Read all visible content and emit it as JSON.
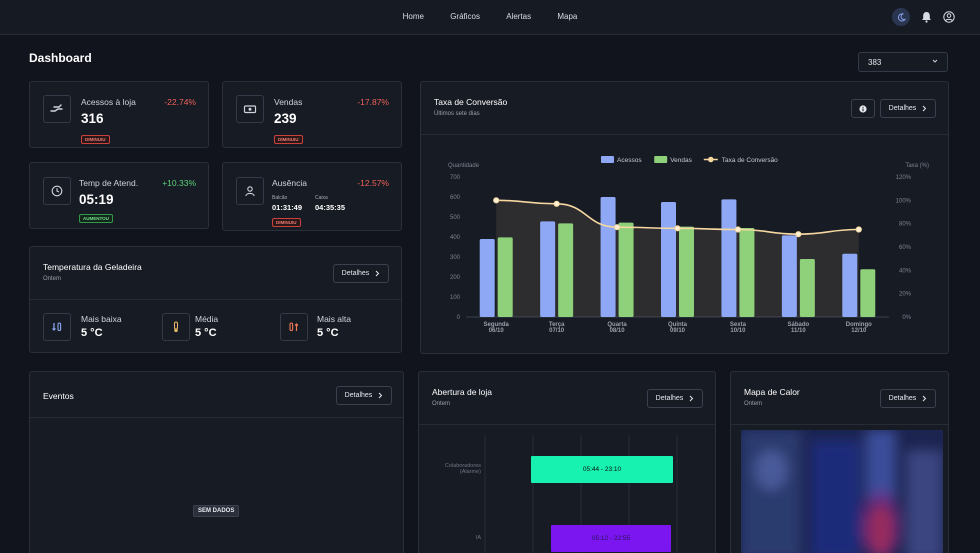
{
  "nav": {
    "items": [
      "Home",
      "Gráficos",
      "Alertas",
      "Mapa"
    ]
  },
  "page": {
    "title": "Dashboard",
    "select_value": "383"
  },
  "kpis": [
    {
      "label": "Acessos à loja",
      "value": "316",
      "pct": "-22.74%",
      "badge": "DIMINUIU",
      "icon": "hand-icon"
    },
    {
      "label": "Vendas",
      "value": "239",
      "pct": "-17.87%",
      "badge": "DIMINUIU",
      "icon": "cash-icon"
    },
    {
      "label": "Temp de Atend.",
      "value": "05:19",
      "pct": "+10.33%",
      "badge": "AUMENTOU",
      "icon": "clock-icon"
    },
    {
      "label": "Ausência",
      "pct": "-12.57%",
      "badge": "DIMINUIU",
      "icon": "person-icon",
      "sub": [
        {
          "label": "Balcão",
          "value": "01:31:49"
        },
        {
          "label": "Caixa",
          "value": "04:35:35"
        }
      ]
    }
  ],
  "temperature": {
    "title": "Temperatura da Geladeira",
    "subtitle": "Ontem",
    "button": "Detalhes",
    "items": [
      {
        "label": "Mais baixa",
        "value": "5 °C"
      },
      {
        "label": "Média",
        "value": "5 °C"
      },
      {
        "label": "Mais alta",
        "value": "5 °C"
      }
    ]
  },
  "conversion": {
    "title": "Taxa de Conversão",
    "subtitle": "Últimos sete dias",
    "button": "Detalhes"
  },
  "chart_data": {
    "type": "bar",
    "categories": [
      [
        "Segunda",
        "06/10"
      ],
      [
        "Terça",
        "07/10"
      ],
      [
        "Quarta",
        "08/10"
      ],
      [
        "Quinta",
        "09/10"
      ],
      [
        "Sexta",
        "10/10"
      ],
      [
        "Sábado",
        "11/10"
      ],
      [
        "Domingo",
        "12/10"
      ]
    ],
    "series": [
      {
        "name": "Acessos",
        "type": "bar",
        "axis": "left",
        "color": "#8ea8f5",
        "values": [
          390,
          478,
          600,
          575,
          588,
          408,
          316
        ]
      },
      {
        "name": "Vendas",
        "type": "bar",
        "axis": "left",
        "color": "#8fd17a",
        "values": [
          398,
          468,
          472,
          452,
          445,
          290,
          239
        ]
      },
      {
        "name": "Taxa de Conversão",
        "type": "line",
        "axis": "right",
        "color": "#f5d7a0",
        "values": [
          100,
          97,
          77,
          76,
          75,
          71,
          75
        ]
      }
    ],
    "ylabel": "Quantidade",
    "y2label": "Taxa (%)",
    "ylim": [
      0,
      700
    ],
    "yticks": [
      0,
      100,
      200,
      300,
      400,
      500,
      600,
      700
    ],
    "y2lim": [
      0,
      120
    ],
    "y2ticks": [
      "0%",
      "20%",
      "40%",
      "60%",
      "80%",
      "100%",
      "120%"
    ],
    "legend": "top-center",
    "grid": false
  },
  "events": {
    "title": "Eventos",
    "button": "Detalhes",
    "empty": "SEM DADOS"
  },
  "opening": {
    "title": "Abertura de loja",
    "subtitle": "Ontem",
    "button": "Detalhes",
    "rows": [
      {
        "label": "Colaboradores (Alarme)",
        "range": "05:44 - 23:10",
        "color": "#17f2b0"
      },
      {
        "label": "IA",
        "range": "05:12 - 22:55",
        "color": "#7b16f0"
      }
    ]
  },
  "heatmap": {
    "title": "Mapa de Calor",
    "subtitle": "Ontem",
    "button": "Detalhes"
  }
}
